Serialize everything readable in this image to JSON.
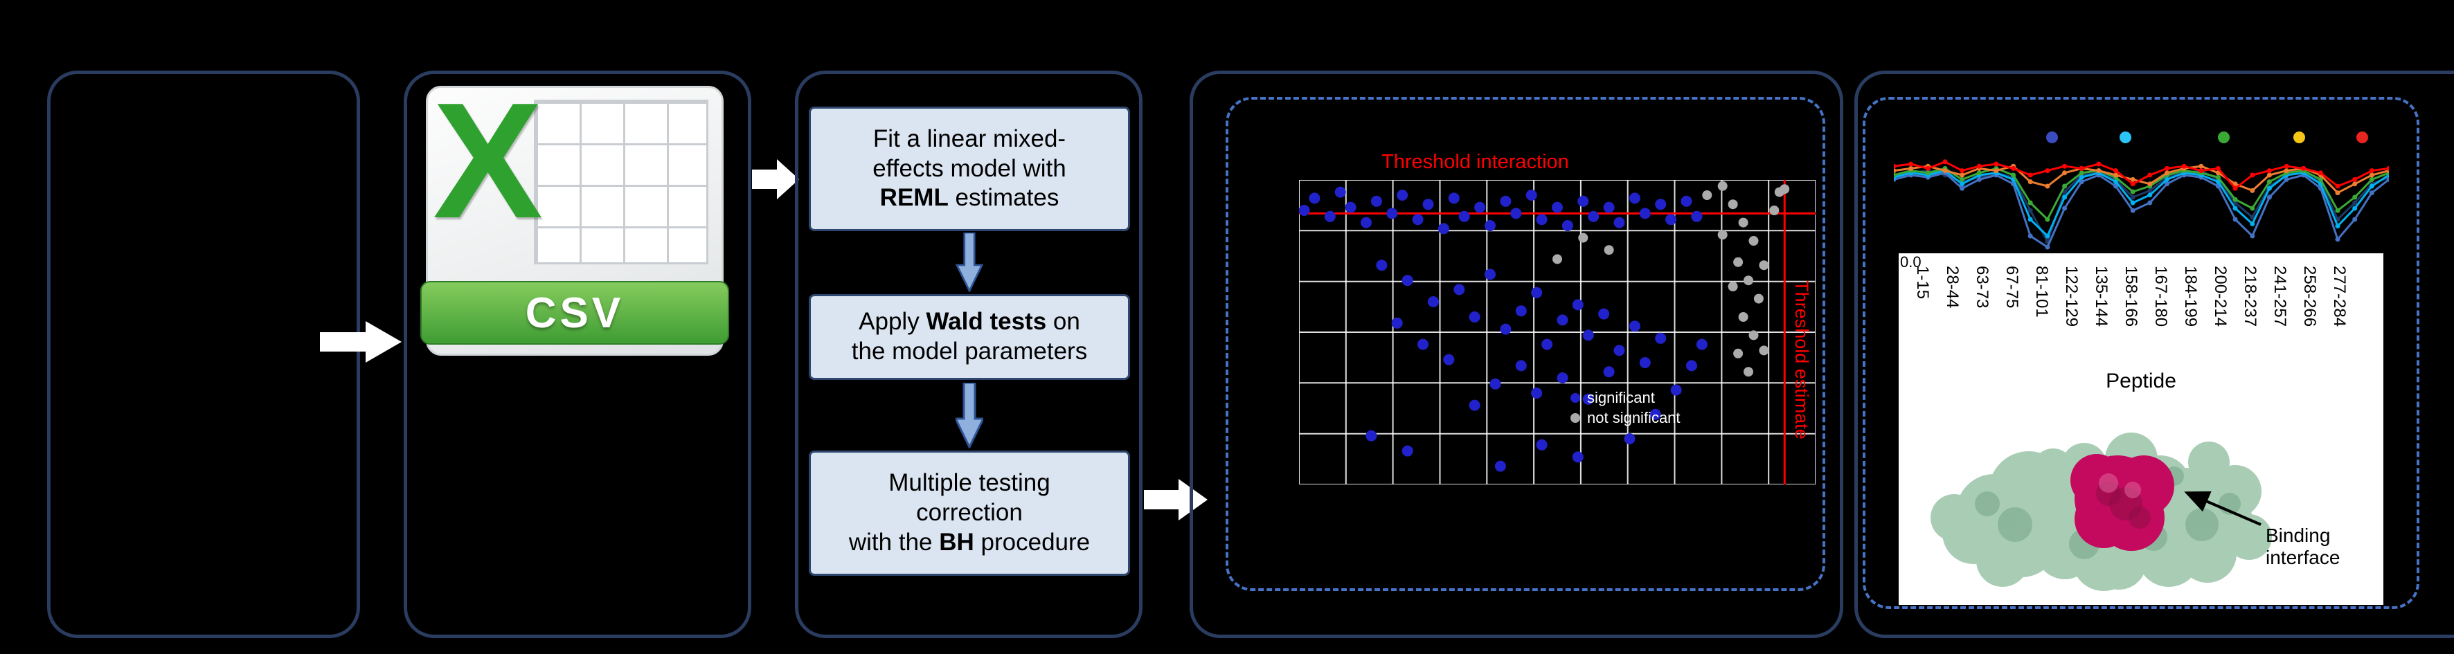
{
  "colors": {
    "background": "#000000",
    "panel_border": "#2A3C60",
    "dashed_border": "#4673C6",
    "step_box_fill": "#DBE5F1",
    "step_box_border": "#2E4770",
    "threshold_red": "#FF0000",
    "scatter_blue": "#2222CC",
    "scatter_gray": "#ABABAB"
  },
  "csv_icon": {
    "letter": "X",
    "label": "CSV"
  },
  "workflow": {
    "steps": [
      {
        "pre": "Fit a linear mixed-\neffects model with\n",
        "bold": "REML",
        "post": " estimates"
      },
      {
        "pre": "Apply ",
        "bold": "Wald tests",
        "post": " on\nthe model parameters"
      },
      {
        "pre": "Multiple testing\ncorrection\nwith the ",
        "bold": "BH",
        "post": " procedure"
      }
    ]
  },
  "scatter": {
    "title": "Threshold interaction",
    "vertical_label": "Threshold estimate",
    "legend": [
      {
        "label": "significant",
        "color": "#2222CC"
      },
      {
        "label": "not significant",
        "color": "#ABABAB"
      }
    ]
  },
  "peptide_axis": {
    "first_tick": "0.0",
    "labels": [
      "1-15",
      "28-44",
      "63-73",
      "67-75",
      "81-101",
      "122-129",
      "135-144",
      "158-166",
      "167-180",
      "184-199",
      "200-214",
      "218-237",
      "241-257",
      "258-266",
      "277-284"
    ],
    "title": "Peptide"
  },
  "protein": {
    "annotation": "Binding interface"
  },
  "chart_data": [
    {
      "type": "scatter",
      "title": "Threshold interaction",
      "note": "coordinates are percent of plot area, x from left, y from top; no axis tick labels visible",
      "grid": {
        "v_lines": 12,
        "h_lines": 7,
        "color": "#FFFFFF"
      },
      "threshold_lines": {
        "horizontal_y_pct": 11,
        "vertical_x_pct": 94,
        "color": "#FF0000"
      },
      "series": [
        {
          "name": "gray-points",
          "color": "#ABABAB",
          "points": [
            [
              84,
              8
            ],
            [
              86,
              14
            ],
            [
              88,
              20
            ],
            [
              85,
              27
            ],
            [
              87,
              33
            ],
            [
              89,
              39
            ],
            [
              86,
              45
            ],
            [
              88,
              51
            ],
            [
              85,
              57
            ],
            [
              87,
              63
            ],
            [
              90,
              28
            ],
            [
              84,
              35
            ],
            [
              92,
              10
            ],
            [
              93,
              4
            ],
            [
              82,
              18
            ],
            [
              90,
              56
            ],
            [
              79,
              5
            ],
            [
              82,
              2
            ],
            [
              94,
              3
            ],
            [
              55,
              19
            ],
            [
              60,
              23
            ],
            [
              50,
              26
            ]
          ]
        },
        {
          "name": "blue-points",
          "color": "#2222CC",
          "points": [
            [
              1,
              10
            ],
            [
              3,
              6
            ],
            [
              6,
              12
            ],
            [
              8,
              4
            ],
            [
              10,
              9
            ],
            [
              13,
              14
            ],
            [
              15,
              7
            ],
            [
              18,
              11
            ],
            [
              20,
              5
            ],
            [
              23,
              13
            ],
            [
              25,
              8
            ],
            [
              28,
              16
            ],
            [
              30,
              6
            ],
            [
              32,
              12
            ],
            [
              35,
              9
            ],
            [
              37,
              15
            ],
            [
              40,
              7
            ],
            [
              42,
              11
            ],
            [
              45,
              5
            ],
            [
              47,
              13
            ],
            [
              50,
              9
            ],
            [
              52,
              15
            ],
            [
              55,
              7
            ],
            [
              57,
              12
            ],
            [
              60,
              9
            ],
            [
              62,
              14
            ],
            [
              65,
              6
            ],
            [
              67,
              11
            ],
            [
              70,
              8
            ],
            [
              72,
              13
            ],
            [
              75,
              7
            ],
            [
              77,
              12
            ],
            [
              16,
              28
            ],
            [
              21,
              33
            ],
            [
              26,
              40
            ],
            [
              31,
              36
            ],
            [
              34,
              45
            ],
            [
              37,
              31
            ],
            [
              40,
              49
            ],
            [
              43,
              43
            ],
            [
              46,
              37
            ],
            [
              48,
              54
            ],
            [
              51,
              46
            ],
            [
              54,
              41
            ],
            [
              56,
              51
            ],
            [
              59,
              44
            ],
            [
              62,
              56
            ],
            [
              65,
              48
            ],
            [
              43,
              61
            ],
            [
              38,
              67
            ],
            [
              46,
              70
            ],
            [
              51,
              65
            ],
            [
              56,
              72
            ],
            [
              60,
              63
            ],
            [
              34,
              74
            ],
            [
              29,
              59
            ],
            [
              24,
              54
            ],
            [
              19,
              47
            ],
            [
              67,
              60
            ],
            [
              70,
              52
            ],
            [
              14,
              84
            ],
            [
              21,
              89
            ],
            [
              47,
              87
            ],
            [
              54,
              91
            ],
            [
              39,
              94
            ],
            [
              64,
              85
            ],
            [
              69,
              77
            ],
            [
              73,
              69
            ],
            [
              76,
              61
            ],
            [
              78,
              54
            ]
          ]
        }
      ],
      "annotations": {
        "top": "Threshold interaction",
        "right_vertical": "Threshold estimate"
      }
    },
    {
      "type": "line",
      "note": "deuterium-uptake style profile per timepoint; values are percent from top of plot area",
      "x_count": 30,
      "series": [
        {
          "name": "navy",
          "color": "#1F3864",
          "values": [
            30,
            28,
            26,
            30,
            36,
            32,
            28,
            32,
            62,
            90,
            45,
            30,
            28,
            34,
            50,
            44,
            32,
            28,
            26,
            34,
            55,
            68,
            40,
            30,
            28,
            36,
            70,
            55,
            38,
            32
          ]
        },
        {
          "name": "blue",
          "color": "#4472C4",
          "values": [
            34,
            30,
            32,
            28,
            42,
            34,
            30,
            38,
            85,
            95,
            60,
            36,
            30,
            40,
            62,
            55,
            38,
            30,
            32,
            40,
            70,
            85,
            50,
            34,
            30,
            42,
            88,
            70,
            46,
            34
          ]
        },
        {
          "name": "teal",
          "color": "#00B0F0",
          "values": [
            32,
            28,
            30,
            26,
            38,
            30,
            28,
            34,
            70,
            85,
            50,
            32,
            28,
            36,
            55,
            48,
            34,
            28,
            30,
            36,
            60,
            74,
            42,
            30,
            28,
            38,
            76,
            60,
            40,
            30
          ]
        },
        {
          "name": "green",
          "color": "#3BAA35",
          "values": [
            30,
            26,
            28,
            24,
            34,
            28,
            24,
            30,
            55,
            70,
            40,
            28,
            26,
            32,
            45,
            40,
            30,
            26,
            28,
            32,
            52,
            60,
            36,
            28,
            26,
            34,
            62,
            50,
            34,
            28
          ]
        },
        {
          "name": "orange",
          "color": "#ED7D31",
          "values": [
            26,
            24,
            22,
            26,
            30,
            24,
            26,
            22,
            36,
            40,
            28,
            24,
            26,
            30,
            34,
            38,
            28,
            24,
            22,
            28,
            38,
            44,
            30,
            26,
            24,
            30,
            46,
            38,
            30,
            26
          ]
        },
        {
          "name": "red",
          "color": "#FF0000",
          "values": [
            22,
            20,
            24,
            18,
            26,
            22,
            20,
            24,
            30,
            26,
            22,
            24,
            20,
            26,
            38,
            30,
            24,
            22,
            26,
            24,
            42,
            30,
            26,
            22,
            24,
            28,
            40,
            34,
            26,
            24
          ]
        }
      ],
      "legend_dots": [
        "#3B4CC0",
        "#29C5F6",
        "#3BAA35",
        "#F5C518",
        "#E8261F"
      ]
    }
  ]
}
